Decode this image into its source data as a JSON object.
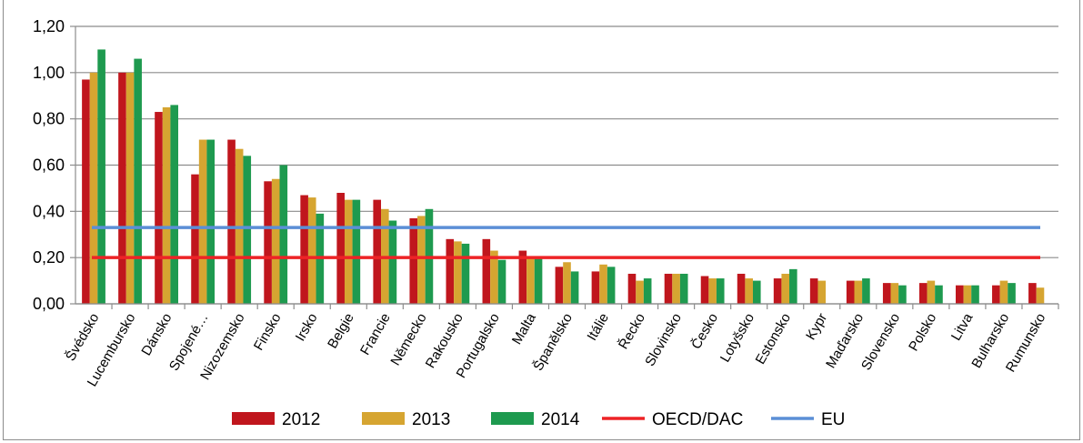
{
  "chart_data": {
    "type": "bar",
    "categories": [
      "Švédsko",
      "Lucembursko",
      "Dánsko",
      "Spojené…",
      "Nizozemsko",
      "Finsko",
      "Irsko",
      "Belgie",
      "Francie",
      "Německo",
      "Rakousko",
      "Portugalsko",
      "Malta",
      "Španělsko",
      "Itálie",
      "Řecko",
      "Slovinsko",
      "Česko",
      "Lotyšsko",
      "Estonsko",
      "Kypr",
      "Maďarsko",
      "Slovensko",
      "Polsko",
      "Litva",
      "Bulharsko",
      "Rumunsko"
    ],
    "series": [
      {
        "name": "2012",
        "color": "#c0161d",
        "values": [
          0.97,
          1.0,
          0.83,
          0.56,
          0.71,
          0.53,
          0.47,
          0.48,
          0.45,
          0.37,
          0.28,
          0.28,
          0.23,
          0.16,
          0.14,
          0.13,
          0.13,
          0.12,
          0.13,
          0.11,
          0.11,
          0.1,
          0.09,
          0.09,
          0.08,
          0.08,
          0.09
        ]
      },
      {
        "name": "2013",
        "color": "#d6a531",
        "values": [
          1.0,
          1.0,
          0.85,
          0.71,
          0.67,
          0.54,
          0.46,
          0.45,
          0.41,
          0.38,
          0.27,
          0.23,
          0.2,
          0.18,
          0.17,
          0.1,
          0.13,
          0.11,
          0.11,
          0.13,
          0.1,
          0.1,
          0.09,
          0.1,
          0.08,
          0.1,
          0.07
        ]
      },
      {
        "name": "2014",
        "color": "#1e9a4f",
        "values": [
          1.1,
          1.06,
          0.86,
          0.71,
          0.64,
          0.6,
          0.39,
          0.45,
          0.36,
          0.41,
          0.26,
          0.19,
          0.2,
          0.14,
          0.16,
          0.11,
          0.13,
          0.11,
          0.1,
          0.15,
          null,
          0.11,
          0.08,
          0.08,
          0.08,
          0.09,
          null
        ]
      }
    ],
    "lines": [
      {
        "name": "OECD/DAC",
        "color": "#ee2326",
        "value": 0.2
      },
      {
        "name": "EU",
        "color": "#5b8fd6",
        "value": 0.33
      }
    ],
    "yticks": [
      "0,00",
      "0,20",
      "0,40",
      "0,60",
      "0,80",
      "1,00",
      "1,20"
    ],
    "ylim": [
      0,
      1.2
    ],
    "grid": true,
    "legend_position": "bottom",
    "title": "",
    "xlabel": "",
    "ylabel": ""
  }
}
